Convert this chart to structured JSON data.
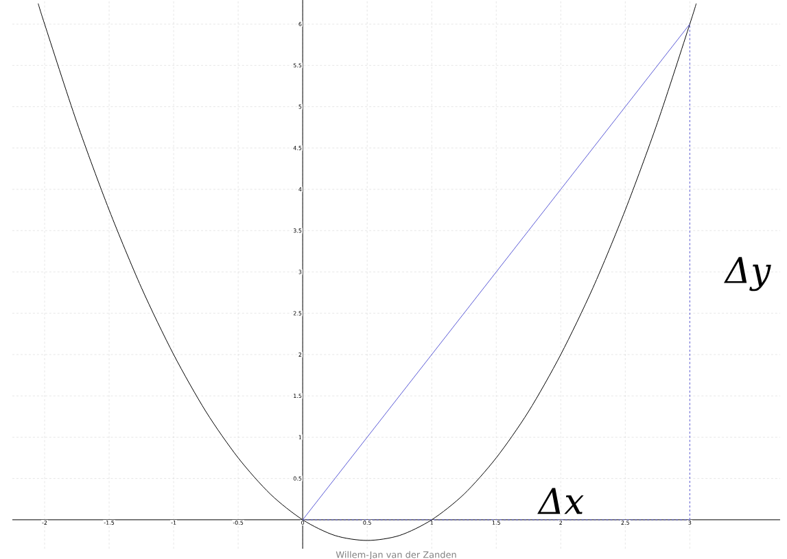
{
  "chart_data": {
    "type": "line",
    "series": [
      {
        "color": "#000000",
        "x": [
          -2.05,
          -2,
          -1.75,
          -1.5,
          -1.25,
          -1,
          -0.75,
          -0.5,
          -0.25,
          0,
          0.25,
          0.5,
          0.75,
          1,
          1.25,
          1.5,
          1.75,
          2,
          2.25,
          2.5,
          2.75,
          3,
          3.05
        ],
        "values": [
          6.25,
          6,
          4.81,
          3.75,
          2.81,
          2,
          1.31,
          0.75,
          0.31,
          0,
          -0.19,
          -0.25,
          -0.19,
          0,
          0.31,
          0.75,
          1.31,
          2,
          2.81,
          3.75,
          4.81,
          6,
          6.25
        ]
      },
      {
        "color": "#5b5bd6",
        "x": [
          0,
          3
        ],
        "values": [
          0,
          6
        ]
      },
      {
        "color": "#5b5bd6",
        "x": [
          3,
          3
        ],
        "values": [
          0,
          6
        ],
        "line_style": "dashed"
      },
      {
        "color": "#5b5bd6",
        "x": [
          0,
          3
        ],
        "values": [
          0,
          0
        ],
        "line_style": "dashed"
      }
    ],
    "xlim": [
      -2.25,
      3.7
    ],
    "ylim": [
      -0.35,
      6.3
    ],
    "xticks": [
      -2,
      -1.5,
      -1,
      -0.5,
      0,
      0.5,
      1,
      1.5,
      2,
      2.5,
      3
    ],
    "yticks": [
      0.5,
      1,
      1.5,
      2,
      2.5,
      3,
      3.5,
      4,
      4.5,
      5,
      5.5,
      6
    ],
    "grid": true,
    "annotations": [
      "Δx",
      "Δy",
      "Willem-Jan van der Zanden"
    ]
  }
}
